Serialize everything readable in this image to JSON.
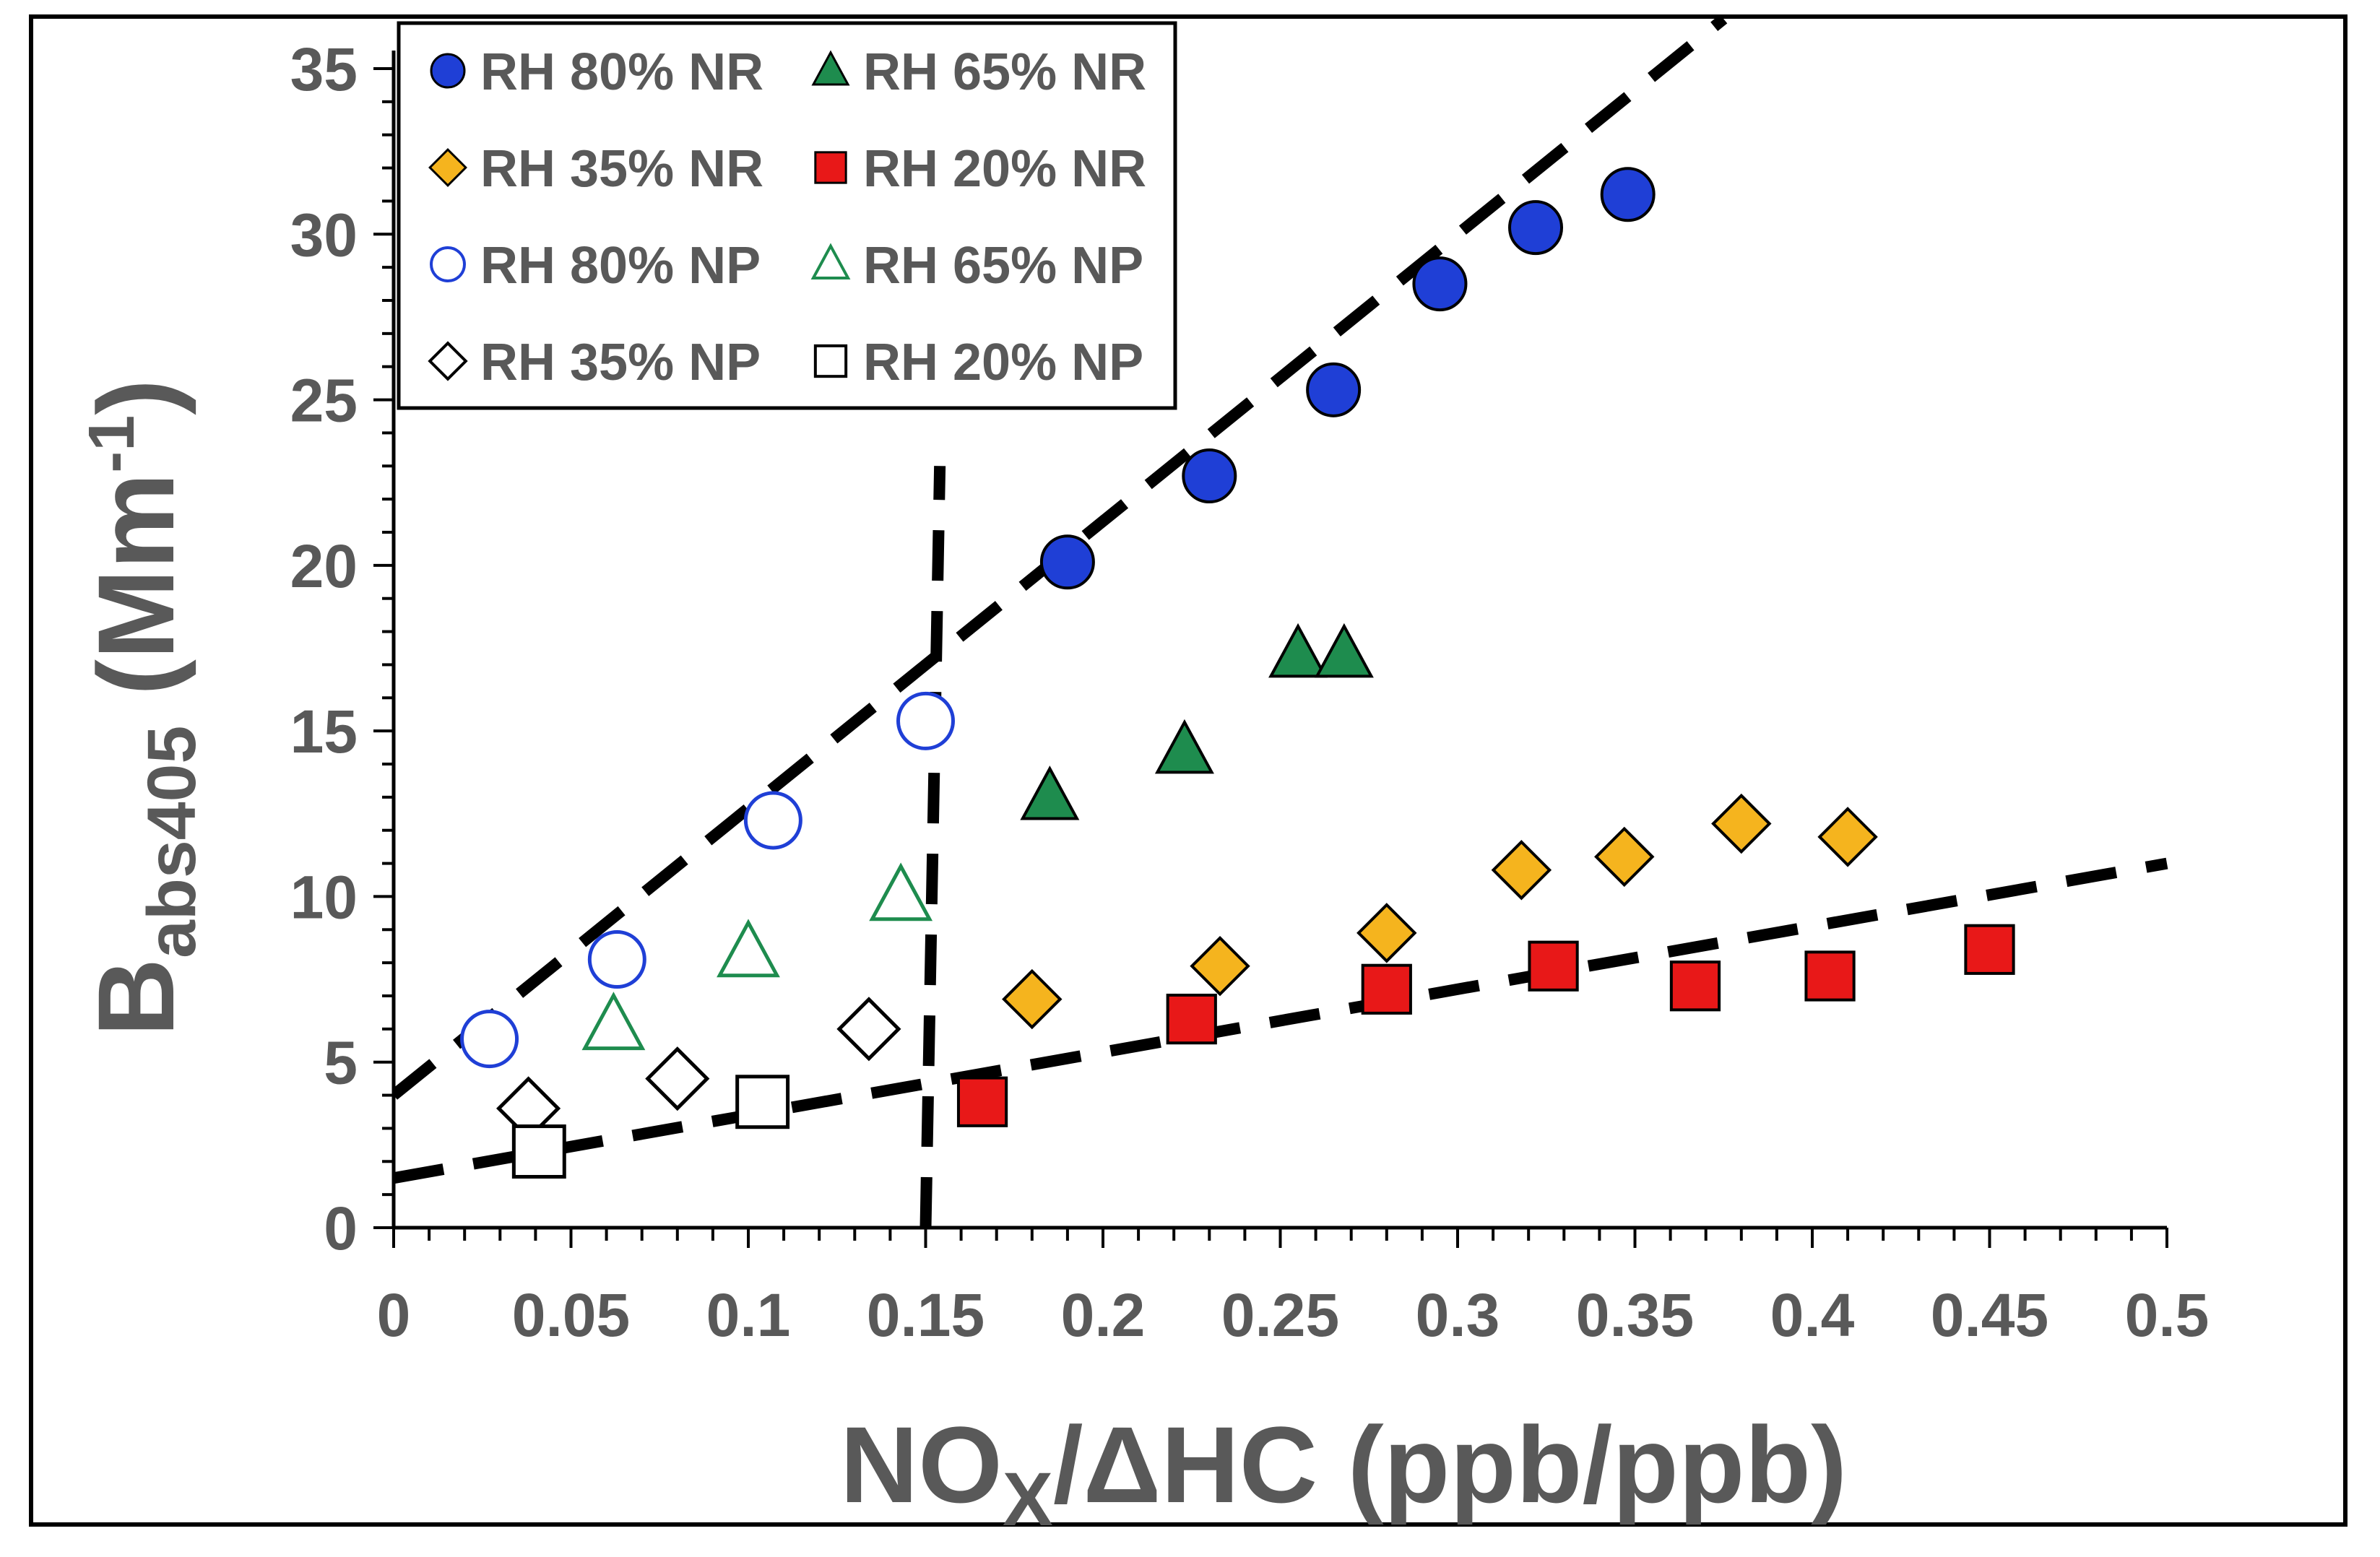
{
  "chart_data": {
    "type": "scatter",
    "title": "",
    "xlabel": {
      "main": "NO",
      "sub": "X",
      "rest": "/ΔHC  (ppb/ppb)"
    },
    "ylabel": {
      "main": "B",
      "sub": "abs405",
      "rest": " (Mm",
      "sup": "-1",
      "close": ")"
    },
    "xlim": [
      0,
      0.5
    ],
    "ylim": [
      0,
      35
    ],
    "x_ticks": [
      {
        "value": 0,
        "label": "0"
      },
      {
        "value": 0.05,
        "label": "0.05"
      },
      {
        "value": 0.1,
        "label": "0.1"
      },
      {
        "value": 0.15,
        "label": "0.15"
      },
      {
        "value": 0.2,
        "label": "0.2"
      },
      {
        "value": 0.25,
        "label": "0.25"
      },
      {
        "value": 0.3,
        "label": "0.3"
      },
      {
        "value": 0.35,
        "label": "0.35"
      },
      {
        "value": 0.4,
        "label": "0.4"
      },
      {
        "value": 0.45,
        "label": "0.45"
      },
      {
        "value": 0.5,
        "label": "0.5"
      }
    ],
    "y_ticks": [
      {
        "value": 0,
        "label": "0"
      },
      {
        "value": 5,
        "label": "5"
      },
      {
        "value": 10,
        "label": "10"
      },
      {
        "value": 15,
        "label": "15"
      },
      {
        "value": 20,
        "label": "20"
      },
      {
        "value": 25,
        "label": "25"
      },
      {
        "value": 30,
        "label": "30"
      },
      {
        "value": 35,
        "label": "35"
      }
    ],
    "grid": false,
    "legend_position": "top-left",
    "series": [
      {
        "name": "RH 80% NR",
        "marker": "circle",
        "filled": true,
        "fill": "#1f3fd6",
        "stroke": "#000000",
        "points": [
          [
            0.19,
            20.1
          ],
          [
            0.23,
            22.7
          ],
          [
            0.265,
            25.3
          ],
          [
            0.295,
            28.5
          ],
          [
            0.322,
            30.2
          ],
          [
            0.348,
            31.2
          ]
        ]
      },
      {
        "name": "RH 65% NR",
        "marker": "triangle",
        "filled": true,
        "fill": "#1e8c4e",
        "stroke": "#000000",
        "points": [
          [
            0.185,
            13.0
          ],
          [
            0.223,
            14.4
          ],
          [
            0.255,
            17.3
          ],
          [
            0.268,
            17.3
          ]
        ]
      },
      {
        "name": "RH 35% NR",
        "marker": "diamond",
        "filled": true,
        "fill": "#f5b41e",
        "stroke": "#000000",
        "points": [
          [
            0.18,
            6.9
          ],
          [
            0.233,
            7.9
          ],
          [
            0.28,
            8.9
          ],
          [
            0.318,
            10.8
          ],
          [
            0.347,
            11.2
          ],
          [
            0.38,
            12.2
          ],
          [
            0.41,
            11.8
          ]
        ]
      },
      {
        "name": "RH 20% NR",
        "marker": "square",
        "filled": true,
        "fill": "#e81818",
        "stroke": "#000000",
        "points": [
          [
            0.166,
            3.8
          ],
          [
            0.225,
            6.3
          ],
          [
            0.28,
            7.2
          ],
          [
            0.327,
            7.9
          ],
          [
            0.367,
            7.3
          ],
          [
            0.405,
            7.6
          ],
          [
            0.45,
            8.4
          ]
        ]
      },
      {
        "name": "RH 80% NP",
        "marker": "circle",
        "filled": false,
        "fill": "#ffffff",
        "stroke": "#1f3fd6",
        "points": [
          [
            0.027,
            5.7
          ],
          [
            0.063,
            8.1
          ],
          [
            0.107,
            12.3
          ],
          [
            0.15,
            15.3
          ]
        ]
      },
      {
        "name": "RH 65% NP",
        "marker": "triangle",
        "filled": false,
        "fill": "#ffffff",
        "stroke": "#1e8c4e",
        "points": [
          [
            0.062,
            6.1
          ],
          [
            0.1,
            8.3
          ],
          [
            0.143,
            10.0
          ]
        ]
      },
      {
        "name": "RH 35% NP",
        "marker": "diamond",
        "filled": false,
        "fill": "#ffffff",
        "stroke": "#000000",
        "points": [
          [
            0.038,
            3.6
          ],
          [
            0.08,
            4.5
          ],
          [
            0.134,
            6.0
          ]
        ]
      },
      {
        "name": "RH 20% NP",
        "marker": "square",
        "filled": false,
        "fill": "#ffffff",
        "stroke": "#000000",
        "points": [
          [
            0.041,
            2.3
          ],
          [
            0.104,
            3.8
          ]
        ]
      }
    ],
    "trend_lines": [
      {
        "name": "steep-fit",
        "from": [
          0,
          4.0
        ],
        "to": [
          0.375,
          36.5
        ]
      },
      {
        "name": "shallow-fit",
        "from": [
          0,
          1.5
        ],
        "to": [
          0.5,
          11.0
        ]
      },
      {
        "name": "threshold",
        "from": [
          0.15,
          0
        ],
        "to": [
          0.154,
          23.0
        ]
      }
    ]
  }
}
